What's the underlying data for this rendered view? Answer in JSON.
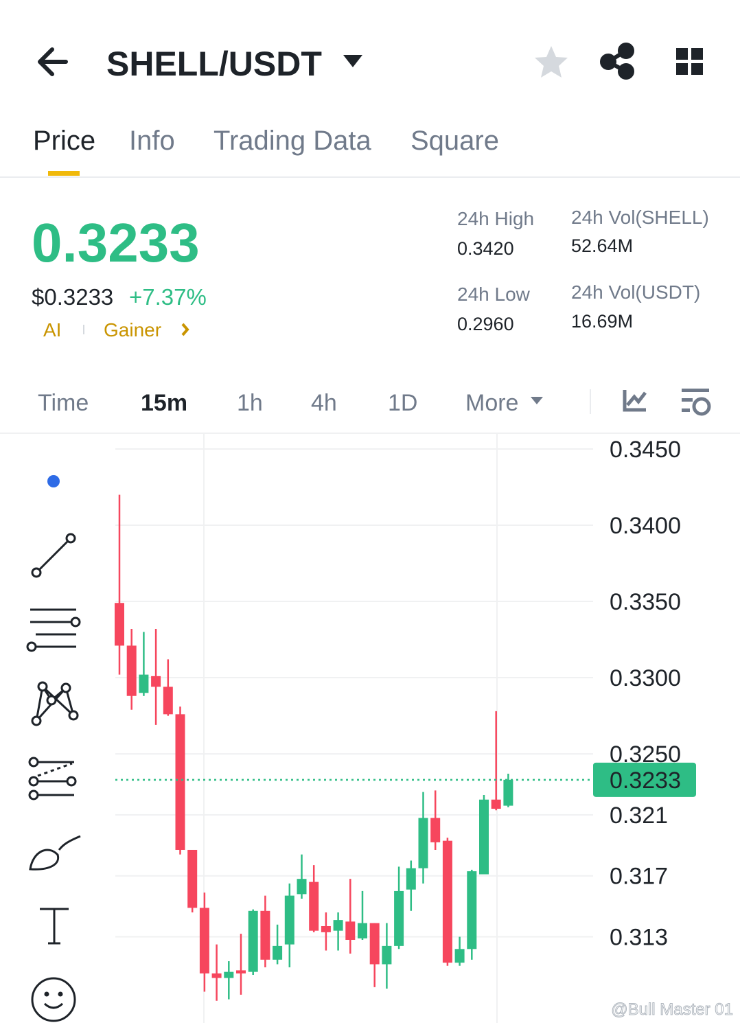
{
  "header": {
    "pair": "SHELL/USDT"
  },
  "tabs": [
    "Price",
    "Info",
    "Trading Data",
    "Square"
  ],
  "ticker": {
    "price": "0.3233",
    "usd_price": "$0.3233",
    "change": "+7.37%",
    "tags": [
      "AI",
      "Gainer"
    ],
    "stats": [
      {
        "label": "24h High",
        "value": "0.3420"
      },
      {
        "label": "24h Vol(SHELL)",
        "value": "52.64M"
      },
      {
        "label": "24h Low",
        "value": "0.2960"
      },
      {
        "label": "24h Vol(USDT)",
        "value": "16.69M"
      }
    ]
  },
  "intervals": [
    "Time",
    "15m",
    "1h",
    "4h",
    "1D",
    "More"
  ],
  "watermark": "@Bull Master 01",
  "chart_data": {
    "type": "candlestick",
    "up_color": "#2ebd85",
    "down_color": "#f6465d",
    "ylim": [
      0.30735,
      0.34599
    ],
    "yticks": [
      {
        "value": 0.345,
        "label": "0.3450"
      },
      {
        "value": 0.34,
        "label": "0.3400"
      },
      {
        "value": 0.335,
        "label": "0.3350"
      },
      {
        "value": 0.33,
        "label": "0.3300"
      },
      {
        "value": 0.325,
        "label": "0.3250"
      },
      0.321,
      0.317,
      0.313
    ],
    "last_price": 0.3233,
    "open": [
      0.3349,
      0.3321,
      0.329,
      0.3301,
      0.3294,
      0.3276,
      0.3187,
      0.3149,
      0.3106,
      0.3103,
      0.3108,
      0.3107,
      0.3147,
      0.3115,
      0.3125,
      0.3158,
      0.3166,
      0.3137,
      0.3134,
      0.314,
      0.3129,
      0.3139,
      0.3112,
      0.3124,
      0.3161,
      0.3175,
      0.3208,
      0.3193,
      0.3113,
      0.3122,
      0.3171,
      0.322,
      0.3216
    ],
    "high": [
      0.342,
      0.3332,
      0.333,
      0.3332,
      0.3312,
      0.3281,
      0.3187,
      0.3159,
      0.3125,
      0.3114,
      0.3132,
      0.3148,
      0.3157,
      0.3138,
      0.3165,
      0.3184,
      0.3177,
      0.3146,
      0.3146,
      0.3168,
      0.316,
      0.3139,
      0.3139,
      0.3176,
      0.318,
      0.3225,
      0.3226,
      0.3195,
      0.313,
      0.3174,
      0.3223,
      0.3278,
      0.3237
    ],
    "low": [
      0.3302,
      0.3279,
      0.3288,
      0.3269,
      0.3275,
      0.3184,
      0.3146,
      0.3094,
      0.3088,
      0.3089,
      0.3092,
      0.3105,
      0.311,
      0.3112,
      0.311,
      0.3155,
      0.3133,
      0.3121,
      0.3121,
      0.3119,
      0.3128,
      0.3097,
      0.3096,
      0.3122,
      0.3147,
      0.3165,
      0.3187,
      0.3111,
      0.3111,
      0.3115,
      0.3171,
      0.3213,
      0.3215
    ],
    "close": [
      0.3321,
      0.3288,
      0.3302,
      0.3294,
      0.3276,
      0.3187,
      0.3149,
      0.3106,
      0.3103,
      0.3107,
      0.3106,
      0.3147,
      0.3115,
      0.3124,
      0.3157,
      0.3168,
      0.3134,
      0.3133,
      0.3141,
      0.3128,
      0.3139,
      0.3112,
      0.3124,
      0.316,
      0.3175,
      0.3208,
      0.3192,
      0.3113,
      0.3122,
      0.3173,
      0.322,
      0.3214,
      0.3233
    ]
  }
}
